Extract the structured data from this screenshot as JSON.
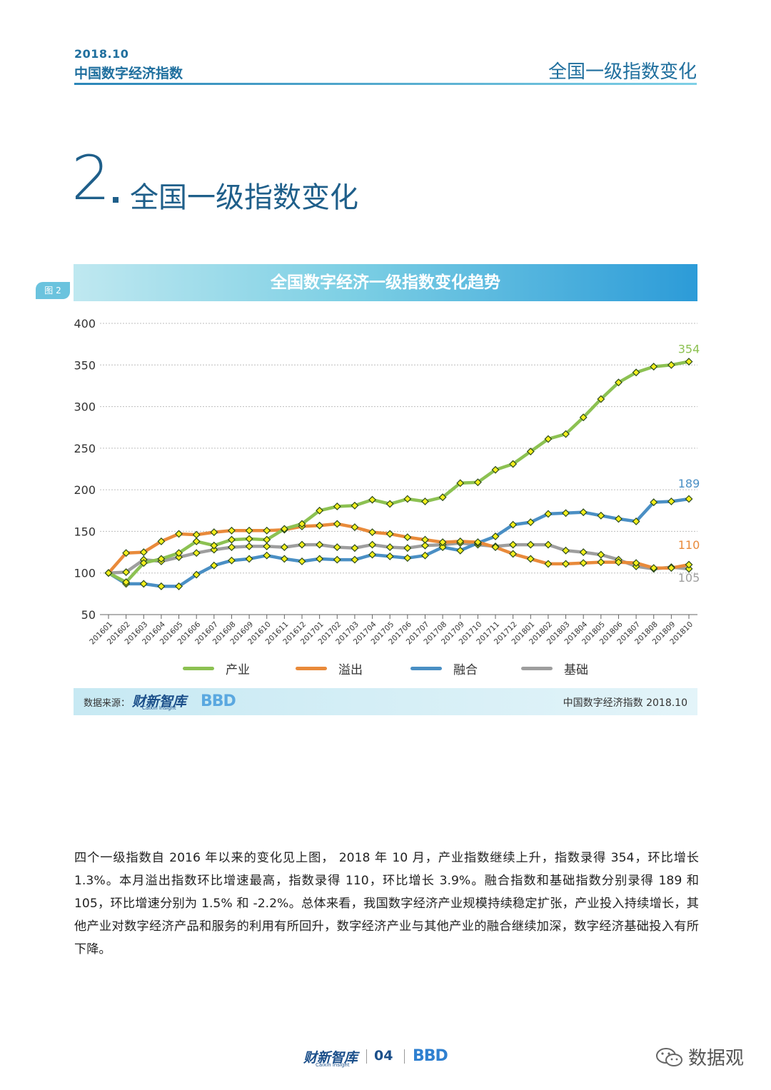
{
  "header": {
    "date": "2018.10",
    "report_title": "中国数字经济指数",
    "section_title": "全国一级指数变化"
  },
  "section": {
    "number": "2",
    "title": "全国一级指数变化"
  },
  "figure": {
    "tag": "图 2",
    "title": "全国数字经济一级指数变化趋势"
  },
  "source": {
    "label": "数据来源：",
    "logo_text": "财新智库",
    "logo_sub": "Caixin Insight",
    "bbd": "BBD",
    "right_text": "中国数字经济指数 2018.10"
  },
  "paragraph": "四个一级指数自 2016 年以来的变化见上图， 2018 年 10 月，产业指数继续上升，指数录得 354，环比增长 1.3%。本月溢出指数环比增速最高，指数录得 110，环比增长 3.9%。融合指数和基础指数分别录得 189 和 105，环比增速分别为 1.5% 和 -2.2%。总体来看，我国数字经济产业规模持续稳定扩张，产业投入持续增长，其他产业对数字经济产品和服务的利用有所回升，数字经济产业与其他产业的融合继续加深，数字经济基础投入有所下降。",
  "footer": {
    "logo_text": "财新智库",
    "logo_sub": "Caixin Insight",
    "page": "04",
    "bbd": "BBD",
    "watermark": "数据观"
  },
  "chart_data": {
    "type": "line",
    "ylim": [
      50,
      400
    ],
    "yticks": [
      50,
      100,
      150,
      200,
      250,
      300,
      350,
      400
    ],
    "grid": true,
    "legend_position": "bottom",
    "marker_color": "#f4ef1c",
    "categories": [
      "201601",
      "201602",
      "201603",
      "201604",
      "201605",
      "201606",
      "201607",
      "201608",
      "201609",
      "201610",
      "201611",
      "201612",
      "201701",
      "201702",
      "201703",
      "201704",
      "201705",
      "201706",
      "201707",
      "201708",
      "201709",
      "201710",
      "201711",
      "201712",
      "201801",
      "201802",
      "201803",
      "201804",
      "201805",
      "201806",
      "201807",
      "201808",
      "201809",
      "201810"
    ],
    "series": [
      {
        "name": "产业",
        "color": "#8cc152",
        "end_label": "354",
        "values": [
          100,
          89,
          112,
          117,
          124,
          138,
          133,
          140,
          141,
          140,
          153,
          159,
          175,
          180,
          181,
          188,
          183,
          189,
          186,
          191,
          208,
          209,
          224,
          231,
          246,
          261,
          267,
          287,
          309,
          329,
          341,
          348,
          350,
          354
        ]
      },
      {
        "name": "溢出",
        "color": "#e98a3a",
        "end_label": "110",
        "values": [
          100,
          124,
          125,
          138,
          147,
          146,
          149,
          151,
          151,
          151,
          152,
          156,
          157,
          159,
          155,
          149,
          147,
          143,
          140,
          137,
          138,
          137,
          131,
          123,
          117,
          111,
          111,
          112,
          113,
          113,
          112,
          106,
          106,
          110
        ]
      },
      {
        "name": "融合",
        "color": "#4a8fc4",
        "end_label": "189",
        "values": [
          100,
          87,
          87,
          84,
          84,
          98,
          109,
          115,
          117,
          121,
          117,
          114,
          117,
          116,
          116,
          122,
          120,
          118,
          121,
          131,
          127,
          136,
          144,
          158,
          161,
          171,
          172,
          173,
          169,
          165,
          162,
          185,
          186,
          189
        ]
      },
      {
        "name": "基础",
        "color": "#9e9e9e",
        "end_label": "105",
        "values": [
          100,
          101,
          116,
          114,
          119,
          124,
          128,
          131,
          132,
          132,
          131,
          134,
          134,
          131,
          130,
          134,
          131,
          130,
          133,
          134,
          136,
          134,
          132,
          134,
          134,
          134,
          127,
          125,
          122,
          116,
          108,
          105,
          107,
          105
        ]
      }
    ]
  }
}
